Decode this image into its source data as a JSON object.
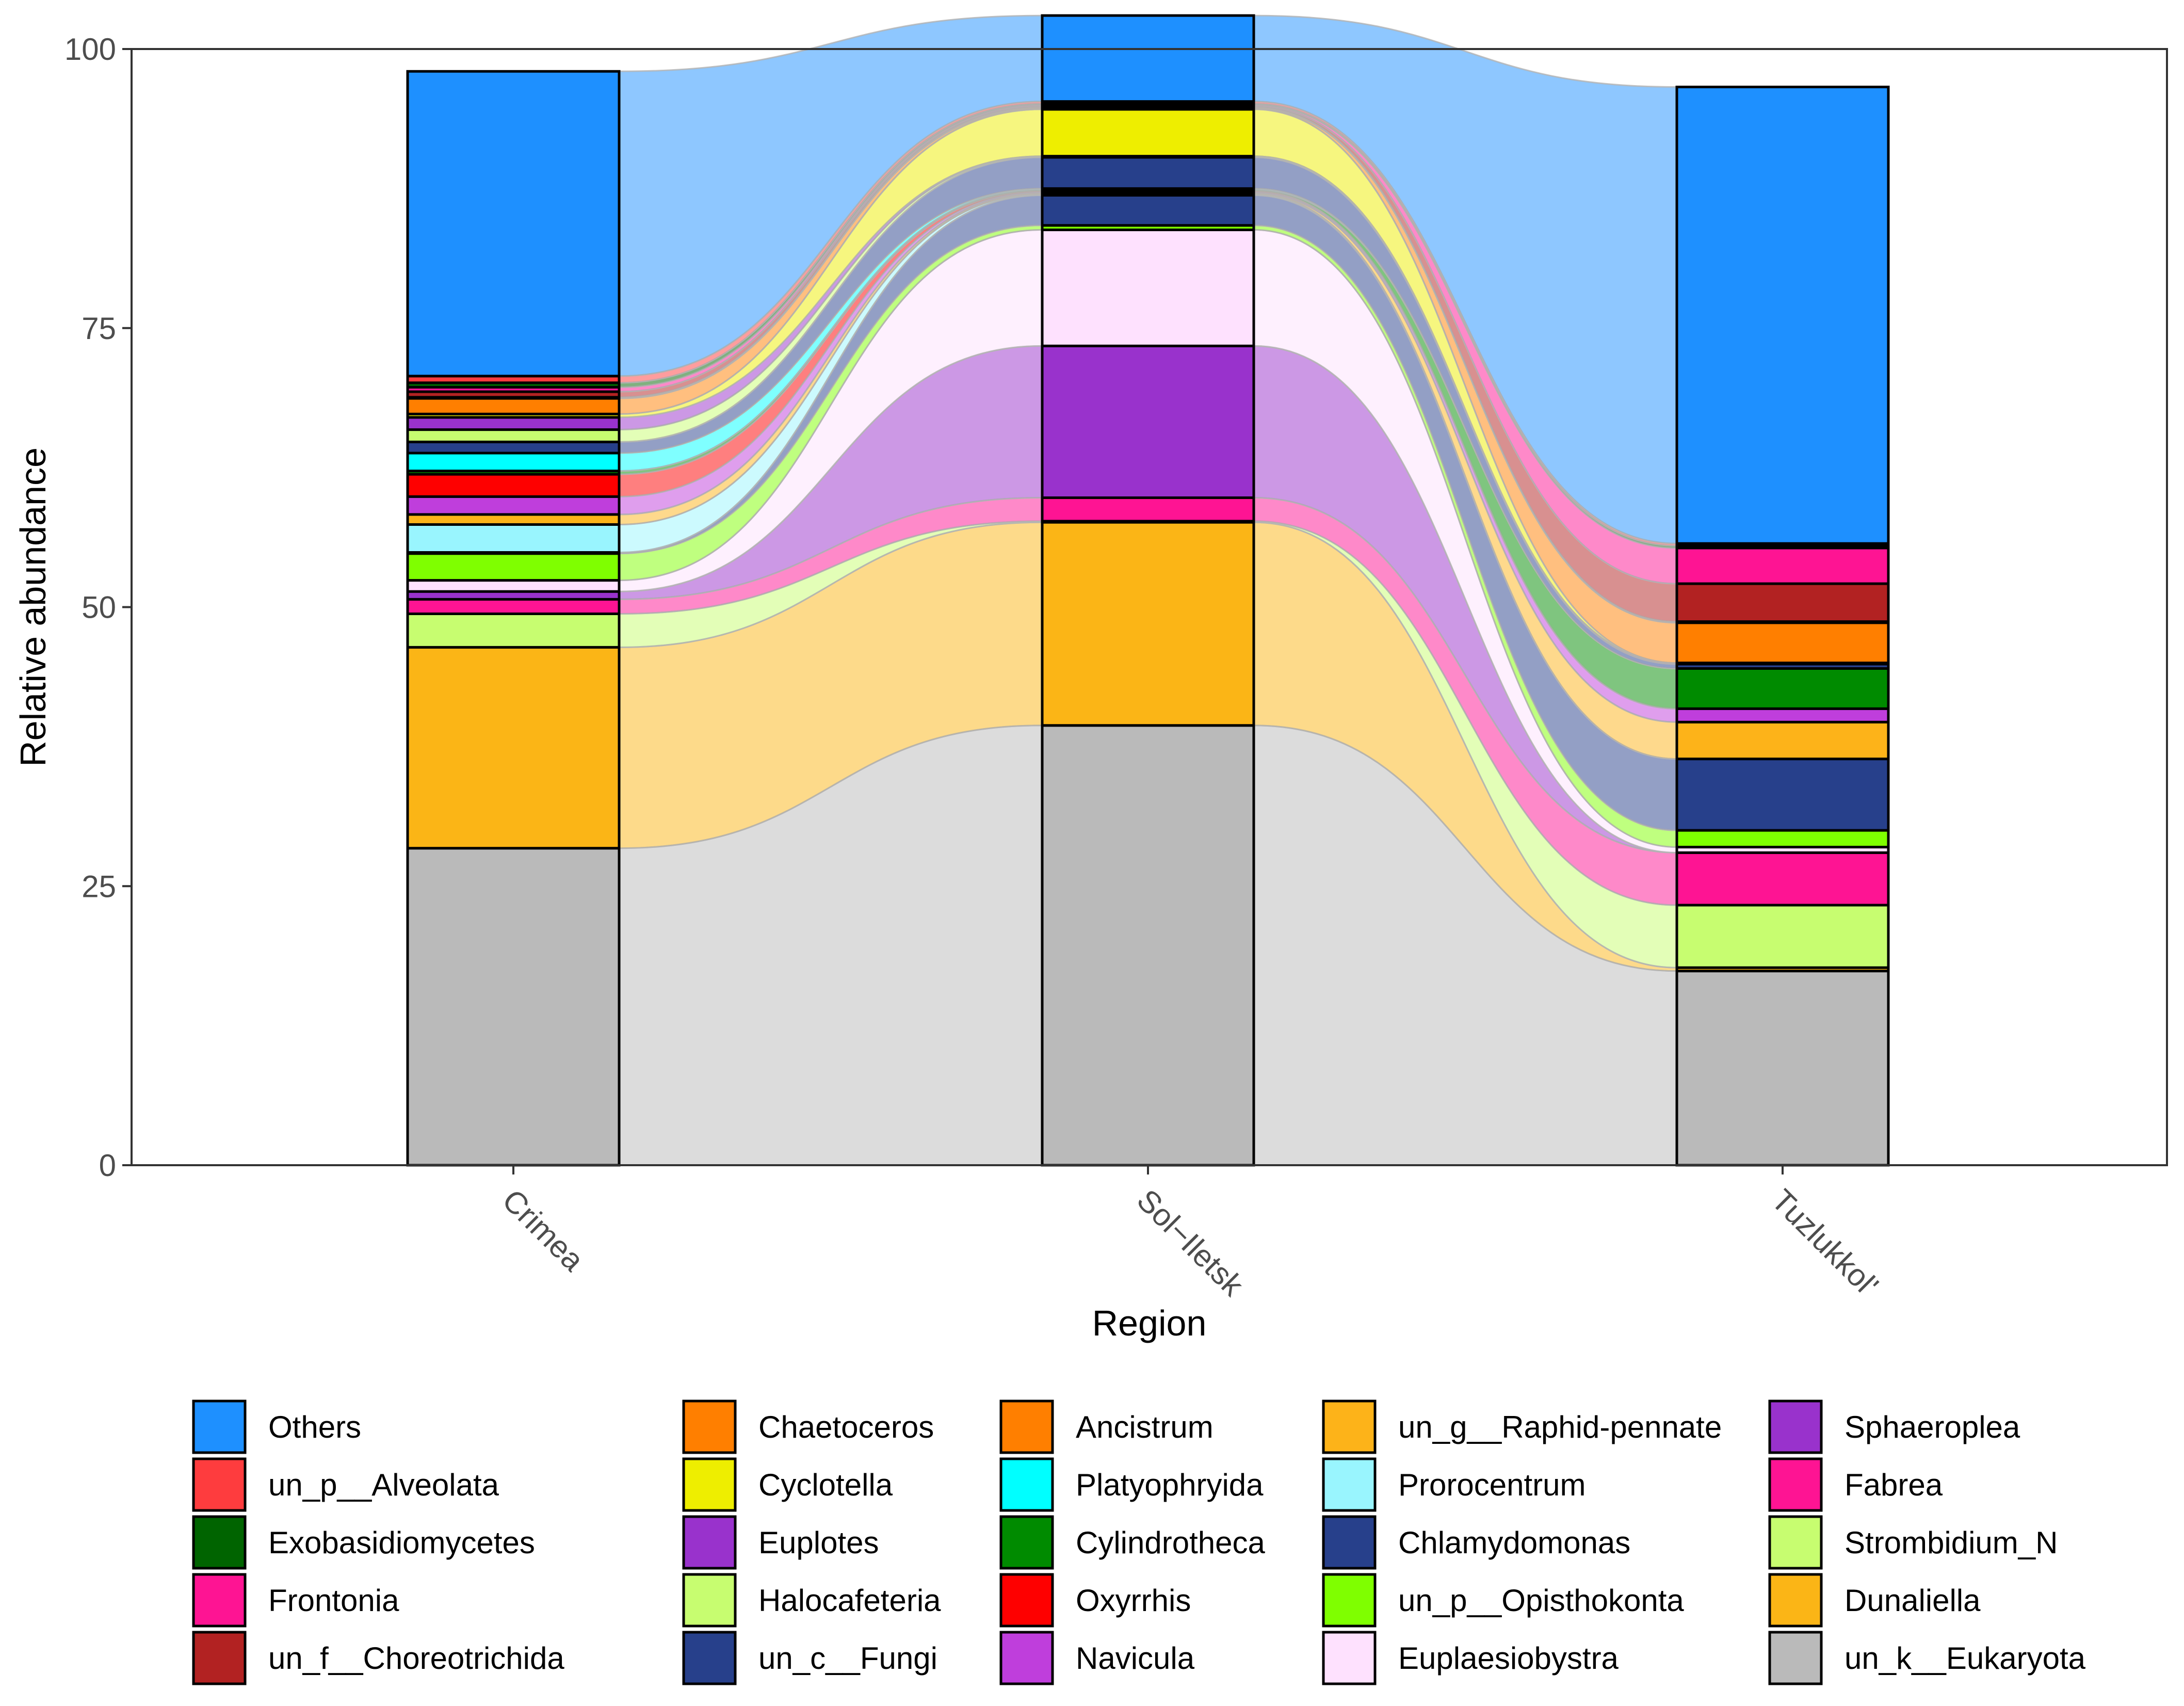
{
  "chart_data": {
    "type": "bar",
    "subtype": "stacked-alluvial",
    "title": "",
    "xlabel": "Region",
    "ylabel": "Relative abundance",
    "ylim": [
      0,
      100
    ],
    "yticks": [
      0,
      25,
      50,
      75,
      100
    ],
    "grid": false,
    "legend_position": "bottom",
    "categories": [
      "Crimea",
      "Sol−Iletsk",
      "Tuzlukkol'"
    ],
    "series": [
      {
        "name": "un_k__Eukaryota",
        "color": "#BABABA",
        "values": [
          28.4,
          39.4,
          17.4
        ]
      },
      {
        "name": "Dunaliella",
        "color": "#FBB516",
        "values": [
          18.0,
          18.2,
          0.3
        ]
      },
      {
        "name": "Strombidium_N",
        "color": "#C7FD70",
        "values": [
          3.0,
          0.1,
          5.6
        ]
      },
      {
        "name": "Fabrea",
        "color": "#FE1493",
        "values": [
          1.3,
          2.1,
          4.7
        ]
      },
      {
        "name": "Sphaeroplea",
        "color": "#9932CC",
        "values": [
          0.7,
          13.6,
          0.0
        ]
      },
      {
        "name": "Euplaesiobystra",
        "color": "#FEE1FE",
        "values": [
          1.0,
          10.4,
          0.5
        ]
      },
      {
        "name": "un_p__Opisthokonta",
        "color": "#7FFF00",
        "values": [
          2.4,
          0.4,
          1.5
        ]
      },
      {
        "name": "Chlamydomonas",
        "color": "#27408B",
        "values": [
          0.1,
          2.7,
          6.4
        ]
      },
      {
        "name": "Prorocentrum",
        "color": "#99F5FE",
        "values": [
          2.5,
          0.1,
          0.0
        ]
      },
      {
        "name": "un_g__Raphid-pennate",
        "color": "#FDB319",
        "values": [
          0.9,
          0.1,
          3.3
        ]
      },
      {
        "name": "Navicula",
        "color": "#BF3EDC",
        "values": [
          1.6,
          0.1,
          1.2
        ]
      },
      {
        "name": "Oxyrrhis",
        "color": "#FE0000",
        "values": [
          2.0,
          0.1,
          0.0
        ]
      },
      {
        "name": "Cylindrotheca",
        "color": "#008B00",
        "values": [
          0.3,
          0.1,
          3.6
        ]
      },
      {
        "name": "Platyophryida",
        "color": "#00FFFF",
        "values": [
          1.6,
          0.1,
          0.0
        ]
      },
      {
        "name": "un_c__Fungi",
        "color": "#27408B",
        "values": [
          1.0,
          2.8,
          0.4
        ]
      },
      {
        "name": "Halocafeteria",
        "color": "#C7FD70",
        "values": [
          1.1,
          0.1,
          0.0
        ]
      },
      {
        "name": "Euplotes",
        "color": "#9932CC",
        "values": [
          1.1,
          0.0,
          0.1
        ]
      },
      {
        "name": "Cyclotella",
        "color": "#EEEE00",
        "values": [
          0.3,
          4.2,
          0.0
        ]
      },
      {
        "name": "Chaetoceros",
        "color": "#FF7F00",
        "values": [
          1.4,
          0.1,
          3.6
        ]
      },
      {
        "name": "Ancistrum",
        "color": "#FF7F00",
        "values": [
          0.1,
          0.1,
          0.1
        ]
      },
      {
        "name": "un_f__Choreotrichida",
        "color": "#B22222",
        "values": [
          0.5,
          0.1,
          3.4
        ]
      },
      {
        "name": "Frontonia",
        "color": "#FE1493",
        "values": [
          0.4,
          0.1,
          3.2
        ]
      },
      {
        "name": "Exobasidiomycetes",
        "color": "#006400",
        "values": [
          0.4,
          0.1,
          0.2
        ]
      },
      {
        "name": "un_p__Alveolata",
        "color": "#FE3C3E",
        "values": [
          0.6,
          0.2,
          0.2
        ]
      },
      {
        "name": "Others",
        "color": "#1E90FF",
        "values": [
          27.3,
          7.7,
          40.9
        ]
      }
    ],
    "legend": [
      [
        "Others",
        "un_p__Alveolata",
        "Exobasidiomycetes",
        "Frontonia",
        "un_f__Choreotrichida"
      ],
      [
        "Chaetoceros",
        "Cyclotella",
        "Euplotes",
        "Halocafeteria",
        "un_c__Fungi"
      ],
      [
        "Ancistrum",
        "Platyophryida",
        "Cylindrotheca",
        "Oxyrrhis",
        "Navicula"
      ],
      [
        "un_g__Raphid-pennate",
        "Prorocentrum",
        "Chlamydomonas",
        "un_p__Opisthokonta",
        "Euplaesiobystra"
      ],
      [
        "Sphaeroplea",
        "Fabrea",
        "Strombidium_N",
        "Dunaliella",
        "un_k__Eukaryota"
      ]
    ]
  }
}
